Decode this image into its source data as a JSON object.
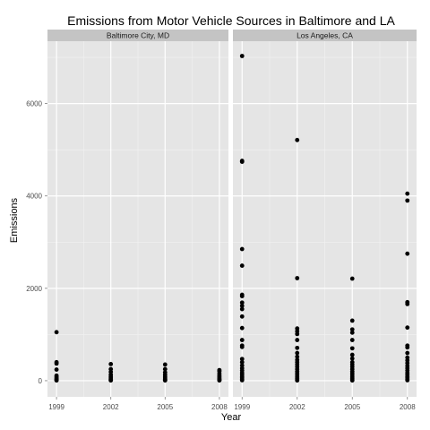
{
  "chart_data": {
    "type": "scatter",
    "title": "Emissions from Motor Vehicle Sources in Baltimore and LA",
    "xlabel": "Year",
    "ylabel": "Emissions",
    "x_ticks": [
      1999,
      2002,
      2005,
      2008
    ],
    "y_ticks": [
      0,
      2000,
      4000,
      6000
    ],
    "xlim": [
      1998.5,
      2008.5
    ],
    "ylim": [
      -350,
      7350
    ],
    "grid": true,
    "point_color": "#000000",
    "panels": [
      {
        "name": "Baltimore City, MD",
        "points": [
          {
            "x": 1999,
            "y": 1050
          },
          {
            "x": 1999,
            "y": 400
          },
          {
            "x": 1999,
            "y": 370
          },
          {
            "x": 1999,
            "y": 240
          },
          {
            "x": 1999,
            "y": 110
          },
          {
            "x": 1999,
            "y": 80
          },
          {
            "x": 1999,
            "y": 50
          },
          {
            "x": 1999,
            "y": 30
          },
          {
            "x": 1999,
            "y": 15
          },
          {
            "x": 1999,
            "y": 5
          },
          {
            "x": 2002,
            "y": 360
          },
          {
            "x": 2002,
            "y": 250
          },
          {
            "x": 2002,
            "y": 190
          },
          {
            "x": 2002,
            "y": 130
          },
          {
            "x": 2002,
            "y": 90
          },
          {
            "x": 2002,
            "y": 60
          },
          {
            "x": 2002,
            "y": 35
          },
          {
            "x": 2002,
            "y": 15
          },
          {
            "x": 2002,
            "y": 5
          },
          {
            "x": 2005,
            "y": 350
          },
          {
            "x": 2005,
            "y": 250
          },
          {
            "x": 2005,
            "y": 180
          },
          {
            "x": 2005,
            "y": 130
          },
          {
            "x": 2005,
            "y": 90
          },
          {
            "x": 2005,
            "y": 60
          },
          {
            "x": 2005,
            "y": 35
          },
          {
            "x": 2005,
            "y": 15
          },
          {
            "x": 2005,
            "y": 5
          },
          {
            "x": 2008,
            "y": 230
          },
          {
            "x": 2008,
            "y": 200
          },
          {
            "x": 2008,
            "y": 150
          },
          {
            "x": 2008,
            "y": 110
          },
          {
            "x": 2008,
            "y": 80
          },
          {
            "x": 2008,
            "y": 50
          },
          {
            "x": 2008,
            "y": 30
          },
          {
            "x": 2008,
            "y": 15
          },
          {
            "x": 2008,
            "y": 5
          }
        ]
      },
      {
        "name": "Los Angeles, CA",
        "points": [
          {
            "x": 1999,
            "y": 7030
          },
          {
            "x": 1999,
            "y": 4760
          },
          {
            "x": 1999,
            "y": 4740
          },
          {
            "x": 1999,
            "y": 2850
          },
          {
            "x": 1999,
            "y": 2490
          },
          {
            "x": 1999,
            "y": 1860
          },
          {
            "x": 1999,
            "y": 1830
          },
          {
            "x": 1999,
            "y": 1690
          },
          {
            "x": 1999,
            "y": 1620
          },
          {
            "x": 1999,
            "y": 1550
          },
          {
            "x": 1999,
            "y": 1390
          },
          {
            "x": 1999,
            "y": 1140
          },
          {
            "x": 1999,
            "y": 880
          },
          {
            "x": 1999,
            "y": 760
          },
          {
            "x": 1999,
            "y": 730
          },
          {
            "x": 1999,
            "y": 470
          },
          {
            "x": 1999,
            "y": 400
          },
          {
            "x": 1999,
            "y": 330
          },
          {
            "x": 1999,
            "y": 270
          },
          {
            "x": 1999,
            "y": 220
          },
          {
            "x": 1999,
            "y": 170
          },
          {
            "x": 1999,
            "y": 130
          },
          {
            "x": 1999,
            "y": 90
          },
          {
            "x": 1999,
            "y": 60
          },
          {
            "x": 1999,
            "y": 30
          },
          {
            "x": 1999,
            "y": 10
          },
          {
            "x": 2002,
            "y": 5210
          },
          {
            "x": 2002,
            "y": 2220
          },
          {
            "x": 2002,
            "y": 1130
          },
          {
            "x": 2002,
            "y": 1070
          },
          {
            "x": 2002,
            "y": 1010
          },
          {
            "x": 2002,
            "y": 880
          },
          {
            "x": 2002,
            "y": 710
          },
          {
            "x": 2002,
            "y": 600
          },
          {
            "x": 2002,
            "y": 520
          },
          {
            "x": 2002,
            "y": 450
          },
          {
            "x": 2002,
            "y": 400
          },
          {
            "x": 2002,
            "y": 350
          },
          {
            "x": 2002,
            "y": 300
          },
          {
            "x": 2002,
            "y": 250
          },
          {
            "x": 2002,
            "y": 200
          },
          {
            "x": 2002,
            "y": 160
          },
          {
            "x": 2002,
            "y": 120
          },
          {
            "x": 2002,
            "y": 80
          },
          {
            "x": 2002,
            "y": 50
          },
          {
            "x": 2002,
            "y": 20
          },
          {
            "x": 2002,
            "y": 5
          },
          {
            "x": 2005,
            "y": 2210
          },
          {
            "x": 2005,
            "y": 1300
          },
          {
            "x": 2005,
            "y": 1110
          },
          {
            "x": 2005,
            "y": 1040
          },
          {
            "x": 2005,
            "y": 880
          },
          {
            "x": 2005,
            "y": 700
          },
          {
            "x": 2005,
            "y": 560
          },
          {
            "x": 2005,
            "y": 480
          },
          {
            "x": 2005,
            "y": 400
          },
          {
            "x": 2005,
            "y": 350
          },
          {
            "x": 2005,
            "y": 300
          },
          {
            "x": 2005,
            "y": 250
          },
          {
            "x": 2005,
            "y": 200
          },
          {
            "x": 2005,
            "y": 160
          },
          {
            "x": 2005,
            "y": 120
          },
          {
            "x": 2005,
            "y": 80
          },
          {
            "x": 2005,
            "y": 50
          },
          {
            "x": 2005,
            "y": 20
          },
          {
            "x": 2005,
            "y": 5
          },
          {
            "x": 2008,
            "y": 4050
          },
          {
            "x": 2008,
            "y": 3900
          },
          {
            "x": 2008,
            "y": 2750
          },
          {
            "x": 2008,
            "y": 1700
          },
          {
            "x": 2008,
            "y": 1660
          },
          {
            "x": 2008,
            "y": 1150
          },
          {
            "x": 2008,
            "y": 760
          },
          {
            "x": 2008,
            "y": 720
          },
          {
            "x": 2008,
            "y": 600
          },
          {
            "x": 2008,
            "y": 500
          },
          {
            "x": 2008,
            "y": 440
          },
          {
            "x": 2008,
            "y": 380
          },
          {
            "x": 2008,
            "y": 320
          },
          {
            "x": 2008,
            "y": 270
          },
          {
            "x": 2008,
            "y": 220
          },
          {
            "x": 2008,
            "y": 170
          },
          {
            "x": 2008,
            "y": 130
          },
          {
            "x": 2008,
            "y": 90
          },
          {
            "x": 2008,
            "y": 60
          },
          {
            "x": 2008,
            "y": 30
          },
          {
            "x": 2008,
            "y": 10
          }
        ]
      }
    ]
  }
}
